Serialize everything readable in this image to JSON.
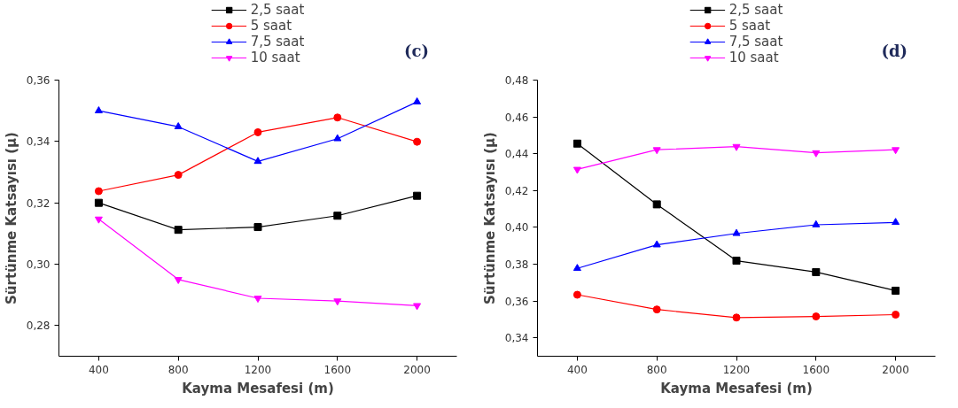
{
  "chart_data": [
    {
      "type": "line",
      "xlabel": "Kayma Mesafesi (m)",
      "ylabel": "Sürtünme Katsayısı (μ)",
      "annotations": [
        "(c)"
      ],
      "x": [
        400,
        800,
        1200,
        1600,
        2000
      ],
      "xlim": [
        200,
        2200
      ],
      "xticks": [
        400,
        800,
        1200,
        1600,
        2000
      ],
      "ylim": [
        0.27,
        0.36
      ],
      "yticks": [
        {
          "value": 0.28,
          "label": "0,28"
        },
        {
          "value": 0.3,
          "label": "0,30"
        },
        {
          "value": 0.32,
          "label": "0,32"
        },
        {
          "value": 0.34,
          "label": "0,34"
        },
        {
          "value": 0.36,
          "label": "0,36"
        }
      ],
      "grid": false,
      "legend": "top",
      "series": [
        {
          "name": "2,5 saat",
          "color": "#000000",
          "marker": "square",
          "values": [
            0.32,
            0.3112,
            0.3121,
            0.3158,
            0.3223
          ]
        },
        {
          "name": "5 saat",
          "color": "#ff0000",
          "marker": "circle",
          "values": [
            0.3238,
            0.3291,
            0.343,
            0.3478,
            0.3399
          ]
        },
        {
          "name": "7,5 saat",
          "color": "#0000ff",
          "marker": "triangle",
          "values": [
            0.35,
            0.3448,
            0.3335,
            0.3409,
            0.3529
          ]
        },
        {
          "name": "10 saat",
          "color": "#ff00ff",
          "marker": "triangle_down",
          "values": [
            0.3147,
            0.295,
            0.2889,
            0.288,
            0.2865
          ]
        }
      ]
    },
    {
      "type": "line",
      "xlabel": "Kayma Mesafesi (m)",
      "ylabel": "Sürtünme Katsayısı (μ)",
      "annotations": [
        "(d)"
      ],
      "x": [
        400,
        800,
        1200,
        1600,
        2000
      ],
      "xlim": [
        200,
        2200
      ],
      "xticks": [
        400,
        800,
        1200,
        1600,
        2000
      ],
      "ylim": [
        0.33,
        0.48
      ],
      "yticks": [
        {
          "value": 0.34,
          "label": "0,34"
        },
        {
          "value": 0.36,
          "label": "0,36"
        },
        {
          "value": 0.38,
          "label": "0,38"
        },
        {
          "value": 0.4,
          "label": "0,40"
        },
        {
          "value": 0.42,
          "label": "0,42"
        },
        {
          "value": 0.44,
          "label": "0,44"
        },
        {
          "value": 0.46,
          "label": "0,46"
        },
        {
          "value": 0.48,
          "label": "0,48"
        }
      ],
      "grid": false,
      "legend": "top",
      "series": [
        {
          "name": "2,5 saat",
          "color": "#000000",
          "marker": "square",
          "values": [
            0.4455,
            0.4125,
            0.3819,
            0.3757,
            0.3656
          ]
        },
        {
          "name": "5 saat",
          "color": "#ff0000",
          "marker": "circle",
          "values": [
            0.3634,
            0.3554,
            0.351,
            0.3516,
            0.3526
          ]
        },
        {
          "name": "7,5 saat",
          "color": "#0000ff",
          "marker": "triangle",
          "values": [
            0.3777,
            0.3905,
            0.3967,
            0.4014,
            0.4027
          ]
        },
        {
          "name": "10 saat",
          "color": "#ff00ff",
          "marker": "triangle_down",
          "values": [
            0.4315,
            0.4422,
            0.4439,
            0.4405,
            0.4422
          ]
        }
      ]
    }
  ]
}
